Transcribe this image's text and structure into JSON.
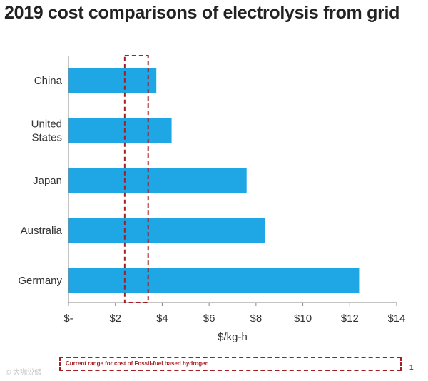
{
  "chart_data": {
    "type": "bar",
    "orientation": "horizontal",
    "title": "2019 cost comparisons of electrolysis from grid",
    "categories": [
      [
        "China"
      ],
      [
        "United",
        "States"
      ],
      [
        "Japan"
      ],
      [
        "Australia"
      ],
      [
        "Germany"
      ]
    ],
    "values": [
      3.75,
      4.4,
      7.6,
      8.4,
      12.4
    ],
    "xlabel": "$/kg-h",
    "ylabel": "",
    "xlim": [
      0,
      14
    ],
    "xticks": [
      0,
      2,
      4,
      6,
      8,
      10,
      12,
      14
    ],
    "xtick_labels": [
      "$-",
      "$2",
      "$4",
      "$6",
      "$8",
      "$10",
      "$12",
      "$14"
    ],
    "highlight_range": [
      2.4,
      3.4
    ],
    "highlight_label": "Current range for cost of Fossil-fuel based hydrogen",
    "colors": {
      "bar": "#1ea7e4",
      "highlight": "#a31f24",
      "axis": "#888888",
      "text": "#333333"
    }
  },
  "page_number": "1",
  "watermark": "© 大咖说储"
}
